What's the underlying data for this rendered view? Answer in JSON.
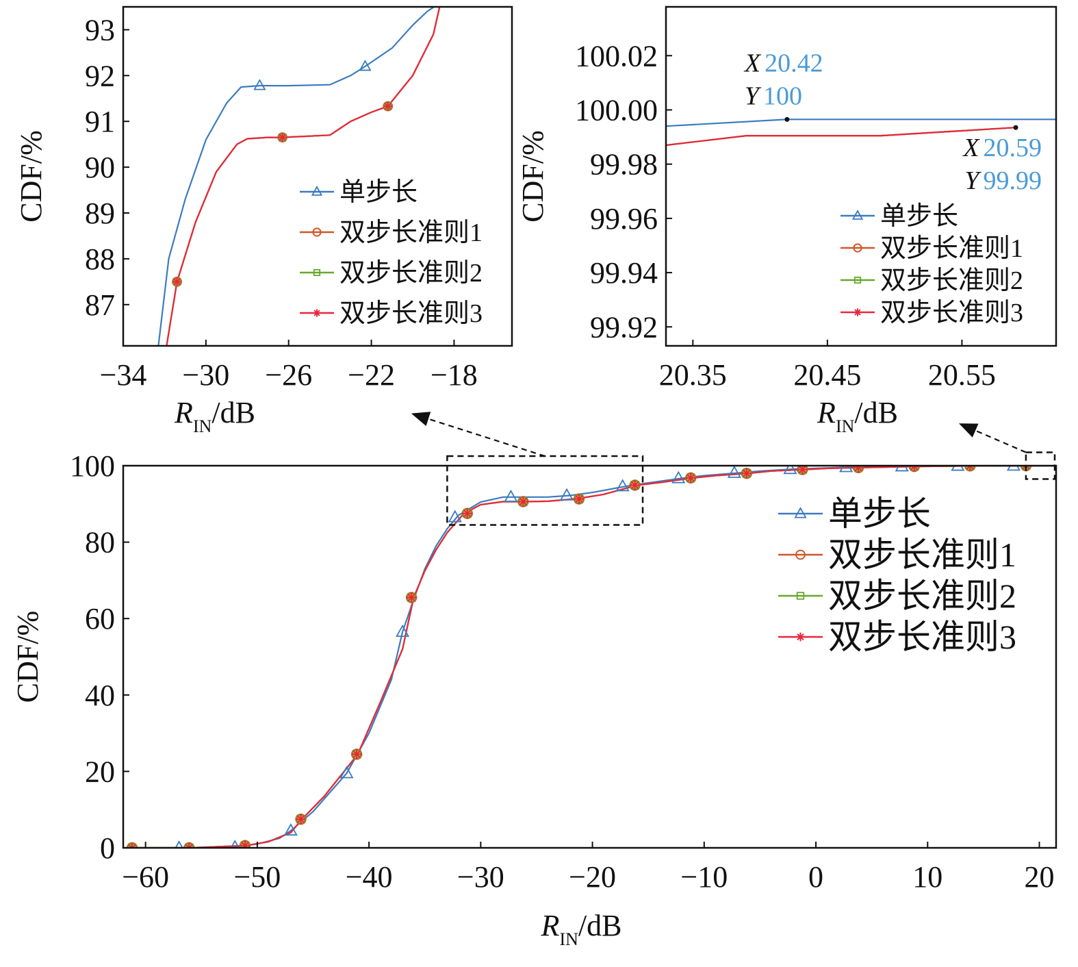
{
  "colors": {
    "single": "#3b7bbf",
    "rule1": "#d0572a",
    "rule2": "#67a82e",
    "rule3": "#e8273d",
    "annotation_value": "#4a9ad8",
    "axis": "#111111",
    "dashed": "#111111"
  },
  "chart_data": [
    {
      "id": "inset_left",
      "type": "line",
      "xlabel": "R_IN/dB",
      "xlabel_main": "R",
      "xlabel_sub": "IN",
      "xlabel_rest": "/dB",
      "ylabel": "CDF/%",
      "xlim": [
        -34,
        -15.2
      ],
      "ylim": [
        86.1,
        93.5
      ],
      "xticks": [
        -34,
        -30,
        -26,
        -22,
        -18
      ],
      "xtick_labels": [
        "−34",
        "−30",
        "−26",
        "−22",
        "−18"
      ],
      "yticks": [
        87,
        88,
        89,
        90,
        91,
        92,
        93
      ],
      "ytick_labels": [
        "87",
        "88",
        "89",
        "90",
        "91",
        "92",
        "93"
      ],
      "grid": false,
      "legend": {
        "position": "center-right",
        "entries": [
          "单步长",
          "双步长准则1",
          "双步长准则2",
          "双步长准则3"
        ]
      },
      "series": [
        {
          "name": "单步长",
          "marker": "triangle",
          "x": [
            -32.3,
            -31.8,
            -31.0,
            -30.0,
            -29.0,
            -28.3,
            -27.4,
            -26.0,
            -24.0,
            -23.0,
            -22.3,
            -21.0,
            -20.0,
            -19.3,
            -18.8
          ],
          "y": [
            86.1,
            88.0,
            89.3,
            90.6,
            91.4,
            91.75,
            91.78,
            91.78,
            91.8,
            92.0,
            92.2,
            92.6,
            93.1,
            93.4,
            93.55
          ],
          "marker_x": [
            -27.4,
            -22.3
          ],
          "marker_y": [
            91.78,
            92.2
          ]
        },
        {
          "name": "双步长准则1",
          "marker": "circle",
          "x": [
            -31.9,
            -31.4,
            -30.5,
            -29.5,
            -28.5,
            -28.0,
            -27.0,
            -26.3,
            -24.0,
            -23.0,
            -22.0,
            -21.2,
            -20.0,
            -19.0,
            -18.7
          ],
          "y": [
            86.1,
            87.5,
            88.8,
            89.9,
            90.5,
            90.62,
            90.65,
            90.65,
            90.7,
            91.0,
            91.2,
            91.33,
            92.0,
            92.9,
            93.5
          ],
          "marker_x": [
            -31.4,
            -26.3,
            -21.2
          ],
          "marker_y": [
            87.5,
            90.65,
            91.33
          ]
        },
        {
          "name": "双步长准则2",
          "marker": "square",
          "x": [
            -31.9,
            -31.4,
            -30.5,
            -29.5,
            -28.5,
            -28.0,
            -27.0,
            -26.3,
            -24.0,
            -23.0,
            -22.0,
            -21.2,
            -20.0,
            -19.0,
            -18.7
          ],
          "y": [
            86.1,
            87.5,
            88.8,
            89.9,
            90.5,
            90.62,
            90.65,
            90.65,
            90.7,
            91.0,
            91.2,
            91.33,
            92.0,
            92.9,
            93.5
          ],
          "marker_x": [
            -31.4,
            -26.3,
            -21.2
          ],
          "marker_y": [
            87.5,
            90.65,
            91.33
          ]
        },
        {
          "name": "双步长准则3",
          "marker": "star",
          "x": [
            -31.9,
            -31.4,
            -30.5,
            -29.5,
            -28.5,
            -28.0,
            -27.0,
            -26.3,
            -24.0,
            -23.0,
            -22.0,
            -21.2,
            -20.0,
            -19.0,
            -18.7
          ],
          "y": [
            86.1,
            87.5,
            88.8,
            89.9,
            90.5,
            90.62,
            90.65,
            90.65,
            90.7,
            91.0,
            91.2,
            91.33,
            92.0,
            92.9,
            93.5
          ],
          "marker_x": [
            -31.4,
            -26.3,
            -21.2
          ],
          "marker_y": [
            87.5,
            90.65,
            91.33
          ]
        }
      ]
    },
    {
      "id": "inset_right",
      "type": "line",
      "xlabel": "R_IN/dB",
      "xlabel_main": "R",
      "xlabel_sub": "IN",
      "xlabel_rest": "/dB",
      "ylabel": "CDF/%",
      "xlim": [
        20.33,
        20.62
      ],
      "ylim": [
        99.913,
        100.038
      ],
      "xticks": [
        20.35,
        20.45,
        20.55
      ],
      "xtick_labels": [
        "20.35",
        "20.45",
        "20.55"
      ],
      "yticks": [
        99.92,
        99.94,
        99.96,
        99.98,
        100.0,
        100.02
      ],
      "ytick_labels": [
        "99.92",
        "99.94",
        "99.96",
        "99.98",
        "100.00",
        "100.02"
      ],
      "grid": false,
      "legend": {
        "position": "bottom-right",
        "entries": [
          "单步长",
          "双步长准则1",
          "双步长准则2",
          "双步长准则3"
        ]
      },
      "series": [
        {
          "name": "单步长",
          "marker": "triangle",
          "x": [
            20.33,
            20.42,
            20.62
          ],
          "y": [
            99.994,
            99.9965,
            99.9965
          ],
          "marker_x": [],
          "marker_y": []
        },
        {
          "name": "双步长准则1",
          "marker": "circle",
          "x": [
            20.33,
            20.39,
            20.49,
            20.59
          ],
          "y": [
            99.987,
            99.9905,
            99.9905,
            99.9935
          ],
          "marker_x": [],
          "marker_y": []
        },
        {
          "name": "双步长准则2",
          "marker": "square",
          "x": [
            20.33,
            20.39,
            20.49,
            20.59
          ],
          "y": [
            99.987,
            99.9905,
            99.9905,
            99.9935
          ],
          "marker_x": [],
          "marker_y": []
        },
        {
          "name": "双步长准则3",
          "marker": "star",
          "x": [
            20.33,
            20.39,
            20.49,
            20.59
          ],
          "y": [
            99.987,
            99.9905,
            99.9905,
            99.9935
          ],
          "marker_x": [],
          "marker_y": []
        }
      ],
      "annotations": [
        {
          "x": 20.42,
          "y": 99.9965,
          "label_x": "20.42",
          "label_y": "100",
          "key_x": "X",
          "key_y": "Y"
        },
        {
          "x": 20.59,
          "y": 99.9935,
          "label_x": "20.59",
          "label_y": "99.99",
          "key_x": "X",
          "key_y": "Y"
        }
      ]
    },
    {
      "id": "main",
      "type": "line",
      "xlabel": "R_IN/dB",
      "xlabel_main": "R",
      "xlabel_sub": "IN",
      "xlabel_rest": "/dB",
      "ylabel": "CDF/%",
      "xlim": [
        -62,
        21.5
      ],
      "ylim": [
        0,
        100
      ],
      "xticks": [
        -60,
        -50,
        -40,
        -30,
        -20,
        -10,
        0,
        10,
        20
      ],
      "xtick_labels": [
        "−60",
        "−50",
        "−40",
        "−30",
        "−20",
        "−10",
        "0",
        "10",
        "20"
      ],
      "yticks": [
        0,
        20,
        40,
        60,
        80,
        100
      ],
      "ytick_labels": [
        "0",
        "20",
        "40",
        "60",
        "80",
        "100"
      ],
      "grid": false,
      "legend": {
        "position": "right",
        "entries": [
          "单步长",
          "双步长准则1",
          "双步长准则2",
          "双步长准则3"
        ]
      },
      "zoom_boxes": [
        {
          "x": [
            -33,
            -15.5
          ],
          "y": [
            84.5,
            102.5
          ],
          "target": "inset_left"
        },
        {
          "x": [
            18.8,
            21.6
          ],
          "y": [
            96.5,
            103.5
          ],
          "target": "inset_right"
        }
      ],
      "series": [
        {
          "name": "单步长",
          "marker": "triangle",
          "x": [
            -61.5,
            -57,
            -52,
            -50,
            -48,
            -47,
            -45,
            -42,
            -40,
            -38,
            -37,
            -36,
            -35,
            -34,
            -33,
            -32,
            -30,
            -28,
            -26,
            -24,
            -22,
            -20,
            -17,
            -15,
            -12,
            -10,
            -7,
            -5,
            -2,
            0,
            3,
            8,
            13,
            18,
            21.5
          ],
          "y": [
            0,
            0,
            0.2,
            1.0,
            2.5,
            4.5,
            9.5,
            19.5,
            30,
            44,
            56.5,
            65,
            73,
            79,
            83.5,
            87,
            90.5,
            91.8,
            91.8,
            91.8,
            92.2,
            93.0,
            94.6,
            95.5,
            96.7,
            97.4,
            98.1,
            98.6,
            99.1,
            99.3,
            99.6,
            99.8,
            99.95,
            99.99,
            100
          ],
          "marker_x": [
            -57,
            -52,
            -47,
            -42,
            -37,
            -32.3,
            -27.3,
            -22.3,
            -17.3,
            -12.3,
            -7.3,
            -2.3,
            2.7,
            7.7,
            12.7,
            17.7
          ],
          "marker_y": [
            0,
            0.2,
            4.5,
            19.5,
            56.5,
            86.5,
            91.8,
            92.2,
            94.6,
            96.7,
            98.1,
            99.1,
            99.6,
            99.8,
            99.95,
            99.99
          ]
        },
        {
          "name": "双步长准则1",
          "marker": "circle",
          "x": [
            -61.5,
            -56,
            -51,
            -49,
            -47,
            -46,
            -44,
            -41,
            -39,
            -37,
            -36,
            -35,
            -34,
            -33,
            -31.5,
            -30,
            -28,
            -26,
            -24,
            -21.5,
            -19,
            -16,
            -14,
            -11,
            -9,
            -6,
            -4,
            -1,
            1,
            4,
            9,
            14,
            19,
            21.5
          ],
          "y": [
            0,
            0,
            0.6,
            1.6,
            4.0,
            7.5,
            13.5,
            24.5,
            38,
            52,
            65.5,
            72.5,
            78,
            82.5,
            87.5,
            89.8,
            90.6,
            90.6,
            90.7,
            91.3,
            92.5,
            94.9,
            95.6,
            96.8,
            97.4,
            98.0,
            98.6,
            99.0,
            99.3,
            99.5,
            99.8,
            99.95,
            99.99,
            100
          ],
          "marker_x": [
            -61.2,
            -56.1,
            -51.1,
            -46.1,
            -41.1,
            -36.2,
            -31.2,
            -26.2,
            -21.2,
            -16.2,
            -11.2,
            -6.2,
            -1.2,
            3.8,
            8.8,
            13.8,
            18.8
          ],
          "marker_y": [
            0,
            0,
            0.6,
            7.5,
            24.5,
            65.5,
            87.5,
            90.6,
            91.3,
            94.9,
            96.8,
            98.0,
            99.0,
            99.5,
            99.8,
            99.95,
            99.99
          ]
        },
        {
          "name": "双步长准则2",
          "marker": "square",
          "x": [
            -61.5,
            -56,
            -51,
            -49,
            -47,
            -46,
            -44,
            -41,
            -39,
            -37,
            -36,
            -35,
            -34,
            -33,
            -31.5,
            -30,
            -28,
            -26,
            -24,
            -21.5,
            -19,
            -16,
            -14,
            -11,
            -9,
            -6,
            -4,
            -1,
            1,
            4,
            9,
            14,
            19,
            21.5
          ],
          "y": [
            0,
            0,
            0.6,
            1.6,
            4.0,
            7.5,
            13.5,
            24.5,
            38,
            52,
            65.5,
            72.5,
            78,
            82.5,
            87.5,
            89.8,
            90.6,
            90.6,
            90.7,
            91.3,
            92.5,
            94.9,
            95.6,
            96.8,
            97.4,
            98.0,
            98.6,
            99.0,
            99.3,
            99.5,
            99.8,
            99.95,
            99.99,
            100
          ],
          "marker_x": [
            -61.2,
            -56.1,
            -51.1,
            -46.1,
            -41.1,
            -36.2,
            -31.2,
            -26.2,
            -21.2,
            -16.2,
            -11.2,
            -6.2,
            -1.2,
            3.8,
            8.8,
            13.8,
            18.8
          ],
          "marker_y": [
            0,
            0,
            0.6,
            7.5,
            24.5,
            65.5,
            87.5,
            90.6,
            91.3,
            94.9,
            96.8,
            98.0,
            99.0,
            99.5,
            99.8,
            99.95,
            99.99
          ]
        },
        {
          "name": "双步长准则3",
          "marker": "star",
          "x": [
            -61.5,
            -56,
            -51,
            -49,
            -47,
            -46,
            -44,
            -41,
            -39,
            -37,
            -36,
            -35,
            -34,
            -33,
            -31.5,
            -30,
            -28,
            -26,
            -24,
            -21.5,
            -19,
            -16,
            -14,
            -11,
            -9,
            -6,
            -4,
            -1,
            1,
            4,
            9,
            14,
            19,
            21.5
          ],
          "y": [
            0,
            0,
            0.6,
            1.6,
            4.0,
            7.5,
            13.5,
            24.5,
            38,
            52,
            65.5,
            72.5,
            78,
            82.5,
            87.5,
            89.8,
            90.6,
            90.6,
            90.7,
            91.3,
            92.5,
            94.9,
            95.6,
            96.8,
            97.4,
            98.0,
            98.6,
            99.0,
            99.3,
            99.5,
            99.8,
            99.95,
            99.99,
            100
          ],
          "marker_x": [
            -61.2,
            -56.1,
            -51.1,
            -46.1,
            -41.1,
            -36.2,
            -31.2,
            -26.2,
            -21.2,
            -16.2,
            -11.2,
            -6.2,
            -1.2,
            3.8,
            8.8,
            13.8,
            18.8
          ],
          "marker_y": [
            0,
            0,
            0.6,
            7.5,
            24.5,
            65.5,
            87.5,
            90.6,
            91.3,
            94.9,
            96.8,
            98.0,
            99.0,
            99.5,
            99.8,
            99.95,
            99.99
          ]
        }
      ]
    }
  ]
}
